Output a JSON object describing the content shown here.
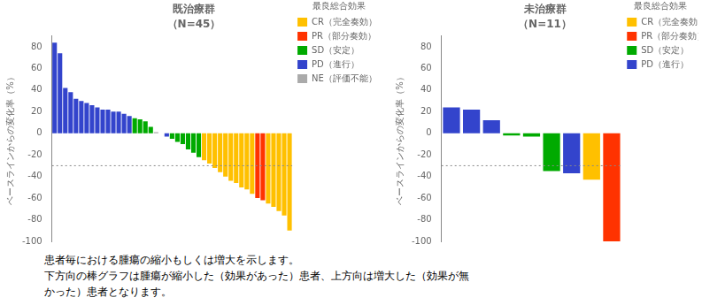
{
  "chart_data": [
    {
      "type": "bar",
      "title": "既治療群",
      "subtitle": "（N=45）",
      "y_label": "ベースラインからの変化率（%）",
      "categories": [
        null,
        null,
        null,
        null,
        null,
        null,
        null,
        null,
        null,
        null,
        null,
        null,
        null,
        null,
        null,
        null,
        null,
        null,
        null,
        null,
        null,
        null,
        null,
        null,
        null,
        null,
        null,
        null,
        null,
        null,
        null,
        null,
        null,
        null,
        null,
        null,
        null,
        null,
        null,
        null,
        null,
        null,
        null,
        null,
        null
      ],
      "series": [
        {
          "name": "CR（完全奏効）",
          "color": "#FFC000",
          "values": [
            null,
            null,
            null,
            null,
            null,
            null,
            null,
            null,
            null,
            null,
            null,
            null,
            null,
            null,
            null,
            null,
            null,
            null,
            null,
            null,
            null,
            null,
            null,
            null,
            null,
            null,
            null,
            null,
            -25,
            -28,
            -32,
            -36,
            -40,
            -44,
            -46,
            -50,
            -52,
            -56,
            null,
            null,
            -65,
            -68,
            -72,
            -76,
            -90
          ]
        },
        {
          "name": "PR（部分奏効）",
          "color": "#FF3300",
          "values": [
            null,
            null,
            null,
            null,
            null,
            null,
            null,
            null,
            null,
            null,
            null,
            null,
            null,
            null,
            null,
            null,
            null,
            null,
            null,
            null,
            null,
            null,
            null,
            null,
            null,
            null,
            null,
            null,
            null,
            null,
            null,
            null,
            null,
            null,
            null,
            null,
            null,
            null,
            -60,
            -62,
            null,
            null,
            null,
            null,
            null
          ]
        },
        {
          "name": "SD（安定）",
          "color": "#00AA00",
          "values": [
            null,
            null,
            null,
            null,
            null,
            null,
            null,
            null,
            null,
            null,
            null,
            null,
            null,
            null,
            null,
            14,
            13,
            11,
            6,
            null,
            null,
            null,
            -5,
            -8,
            -10,
            -15,
            -18,
            -22,
            null,
            null,
            null,
            null,
            null,
            null,
            null,
            null,
            null,
            null,
            null,
            null,
            null,
            null,
            null,
            null,
            null
          ]
        },
        {
          "name": "PD（進行）",
          "color": "#3344CC",
          "values": [
            84,
            74,
            42,
            38,
            32,
            30,
            28,
            26,
            24,
            22,
            22,
            20,
            20,
            18,
            16,
            null,
            null,
            null,
            null,
            null,
            null,
            -3,
            null,
            null,
            null,
            null,
            null,
            null,
            null,
            null,
            null,
            null,
            null,
            null,
            null,
            null,
            null,
            null,
            null,
            null,
            null,
            null,
            null,
            null,
            null
          ]
        },
        {
          "name": "NE（評価不能）",
          "color": "#AAAAAA",
          "values": [
            null,
            null,
            null,
            null,
            null,
            null,
            null,
            null,
            null,
            null,
            null,
            null,
            null,
            null,
            null,
            null,
            null,
            null,
            null,
            1,
            0,
            null,
            null,
            null,
            null,
            null,
            null,
            null,
            null,
            null,
            null,
            null,
            null,
            null,
            null,
            null,
            null,
            null,
            null,
            null,
            null,
            null,
            null,
            null,
            null
          ]
        }
      ],
      "legend_title": "最良総合効果",
      "legend": "right",
      "ylim": [
        -100,
        90
      ],
      "yticks": [
        -100,
        -80,
        -60,
        -40,
        -20,
        0,
        20,
        40,
        60,
        80
      ],
      "reference_line": -30,
      "grid": false,
      "tick_labels": "y"
    },
    {
      "type": "bar",
      "title": "未治療群",
      "subtitle": "（N=11）",
      "y_label": "ベースラインからの変化率（%）",
      "categories": [
        null,
        null,
        null,
        null,
        null,
        null,
        null,
        null,
        null
      ],
      "series": [
        {
          "name": "CR（完全奏効）",
          "color": "#FFC000",
          "values": [
            null,
            null,
            null,
            null,
            null,
            null,
            null,
            -43,
            null
          ]
        },
        {
          "name": "PR（部分奏効）",
          "color": "#FF3300",
          "values": [
            null,
            null,
            null,
            null,
            null,
            null,
            null,
            null,
            -100
          ]
        },
        {
          "name": "SD（安定）",
          "color": "#00AA00",
          "values": [
            null,
            null,
            null,
            -2,
            -3,
            -35,
            null,
            null,
            null
          ]
        },
        {
          "name": "PD（進行）",
          "color": "#3344CC",
          "values": [
            24,
            22,
            12,
            null,
            null,
            null,
            -37,
            null,
            null
          ]
        }
      ],
      "legend_title": "最良総合効果",
      "legend": "right",
      "ylim": [
        -100,
        90
      ],
      "yticks": [
        -100,
        -80,
        -60,
        -40,
        -20,
        0,
        20,
        40,
        60,
        80
      ],
      "reference_line": -30,
      "grid": false,
      "tick_labels": "y"
    }
  ],
  "caption": [
    "患者毎における腫瘍の縮小もしくは増大を示します。",
    "下方向の棒グラフは腫瘍が縮小した（効果があった）患者、上方向は増大した（効果が無",
    "かった）患者となります。"
  ]
}
